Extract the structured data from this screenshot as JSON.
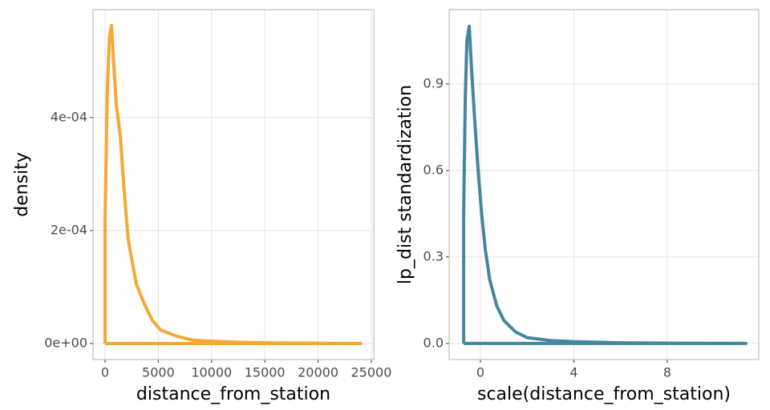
{
  "chart_data": [
    {
      "type": "line",
      "xlabel": "distance_from_station",
      "ylabel": "density",
      "xlim": [
        -1130,
        25230
      ],
      "ylim": [
        -2.84e-05,
        0.000591
      ],
      "xticks": [
        0,
        5000,
        10000,
        15000,
        20000,
        25000
      ],
      "yticks": [
        {
          "value": 0,
          "label": "0e+00"
        },
        {
          "value": 0.0002,
          "label": "2e-04"
        },
        {
          "value": 0.0004,
          "label": "4e-04"
        }
      ],
      "grid": true,
      "series": [
        {
          "color": "#f5a833",
          "x": [
            0,
            0,
            200,
            400,
            600,
            800,
            1050,
            1430,
            1800,
            2180,
            2940,
            3690,
            4440,
            5200,
            6700,
            8200,
            10000,
            12700,
            16000,
            20000,
            24000,
            0
          ],
          "values": [
            0,
            0.00022,
            0.00044,
            0.00054,
            0.000563,
            0.0005,
            0.000424,
            0.000367,
            0.000268,
            0.000183,
            0.000105,
            7e-05,
            4.1e-05,
            2.4e-05,
            1.3e-05,
            6e-06,
            4e-06,
            2e-06,
            1e-06,
            5e-07,
            0,
            0
          ]
        }
      ]
    },
    {
      "type": "line",
      "xlabel": "scale(distance_from_station)",
      "ylabel": "lp_dist standardization",
      "xlim": [
        -1.34,
        11.92
      ],
      "ylim": [
        -0.056,
        1.158
      ],
      "xticks": [
        0,
        4,
        8
      ],
      "yticks": [
        {
          "value": 0,
          "label": "0.0"
        },
        0.3,
        0.6,
        0.9
      ],
      "grid": true,
      "series": [
        {
          "color": "#45869e",
          "x": [
            -0.72,
            -0.72,
            -0.65,
            -0.58,
            -0.48,
            -0.38,
            -0.25,
            -0.1,
            0.05,
            0.2,
            0.4,
            0.7,
            1.0,
            1.5,
            2.0,
            3,
            4,
            5,
            6,
            8,
            11.37,
            -0.72
          ],
          "values": [
            0,
            0.45,
            0.85,
            1.05,
            1.1,
            0.95,
            0.78,
            0.6,
            0.45,
            0.33,
            0.22,
            0.13,
            0.08,
            0.04,
            0.02,
            0.01,
            0.006,
            0.004,
            0.002,
            0.001,
            0,
            0
          ]
        }
      ]
    }
  ]
}
